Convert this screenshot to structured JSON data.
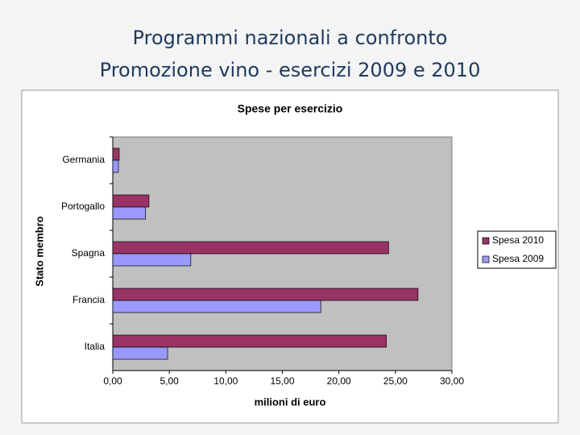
{
  "slide": {
    "title_lines": [
      "Programmi nazionali a confronto",
      "Promozione vino - esercizi 2009 e 2010"
    ]
  },
  "chart_data": {
    "type": "hbar",
    "title": "Spese per esercizio",
    "x_label": "milioni di euro",
    "y_label": "Stato membro",
    "categories": [
      "Germania",
      "Portogallo",
      "Spagna",
      "Francia",
      "Italia"
    ],
    "series": [
      {
        "name": "Spesa 2010",
        "color": "#993366",
        "values": [
          0.57,
          3.2,
          24.4,
          27.0,
          24.2
        ]
      },
      {
        "name": "Spesa 2009",
        "color": "#9999ff",
        "values": [
          0.5,
          2.9,
          6.9,
          18.4,
          4.85
        ]
      }
    ],
    "xlim": [
      0,
      30
    ],
    "xticks": [
      {
        "value": 0,
        "label": "0,00"
      },
      {
        "value": 5,
        "label": "5,00"
      },
      {
        "value": 10,
        "label": "10,00"
      },
      {
        "value": 15,
        "label": "15,00"
      },
      {
        "value": 20,
        "label": "20,00"
      },
      {
        "value": 25,
        "label": "25,00"
      },
      {
        "value": 30,
        "label": "30,00"
      }
    ],
    "grid": false,
    "legend": "right"
  }
}
